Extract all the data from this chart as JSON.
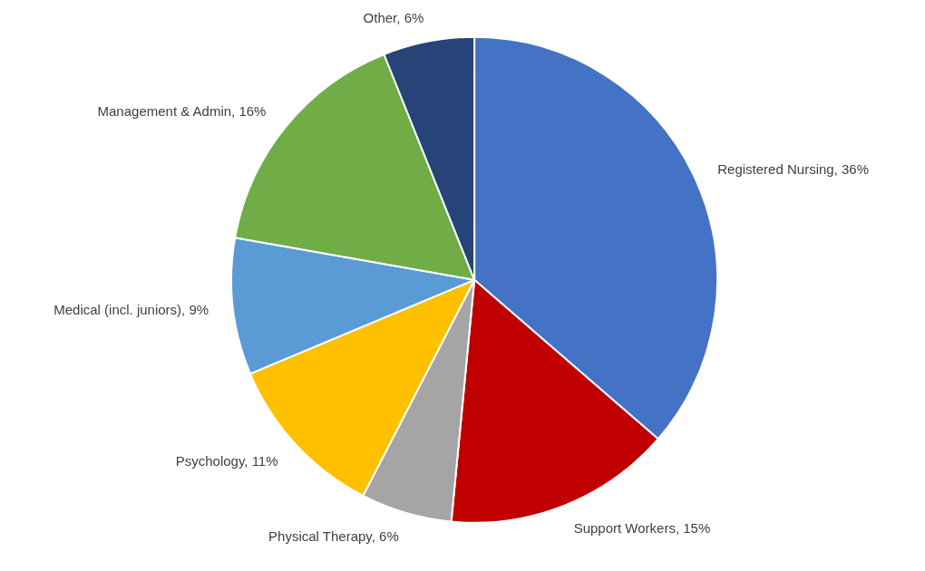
{
  "chart_data": {
    "type": "pie",
    "categories": [
      "Registered Nursing",
      "Support Workers",
      "Physical Therapy",
      "Psychology",
      "Medical (incl. juniors)",
      "Management & Admin",
      "Other"
    ],
    "values": [
      36,
      15,
      6,
      11,
      9,
      16,
      6
    ],
    "value_labels": [
      "36%",
      "15%",
      "6%",
      "11%",
      "9%",
      "16%",
      "6%"
    ],
    "colors": [
      "#4472c4",
      "#c00000",
      "#a5a5a5",
      "#ffc000",
      "#5b9bd5",
      "#70ad47",
      "#264478"
    ]
  }
}
